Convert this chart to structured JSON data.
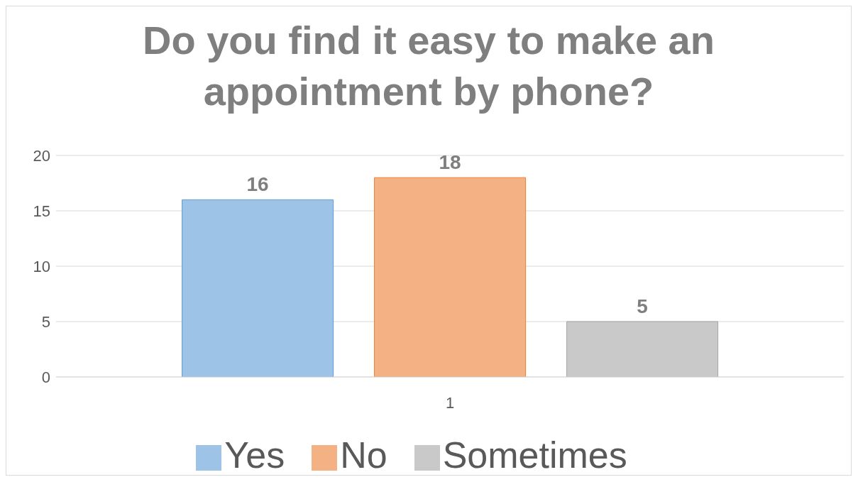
{
  "chart_data": {
    "type": "bar",
    "title": "Do you find it easy to make an appointment by phone?",
    "categories": [
      "1"
    ],
    "series": [
      {
        "name": "Yes",
        "color": "#9dc3e6",
        "values": [
          16
        ]
      },
      {
        "name": "No",
        "color": "#f4b183",
        "values": [
          18
        ]
      },
      {
        "name": "Sometimes",
        "color": "#c9c9c9",
        "values": [
          5
        ]
      }
    ],
    "ylim": [
      0,
      20
    ],
    "yticks": [
      0,
      5,
      10,
      15,
      20
    ],
    "grid": "y",
    "legend": "bottom",
    "data_labels": true
  }
}
